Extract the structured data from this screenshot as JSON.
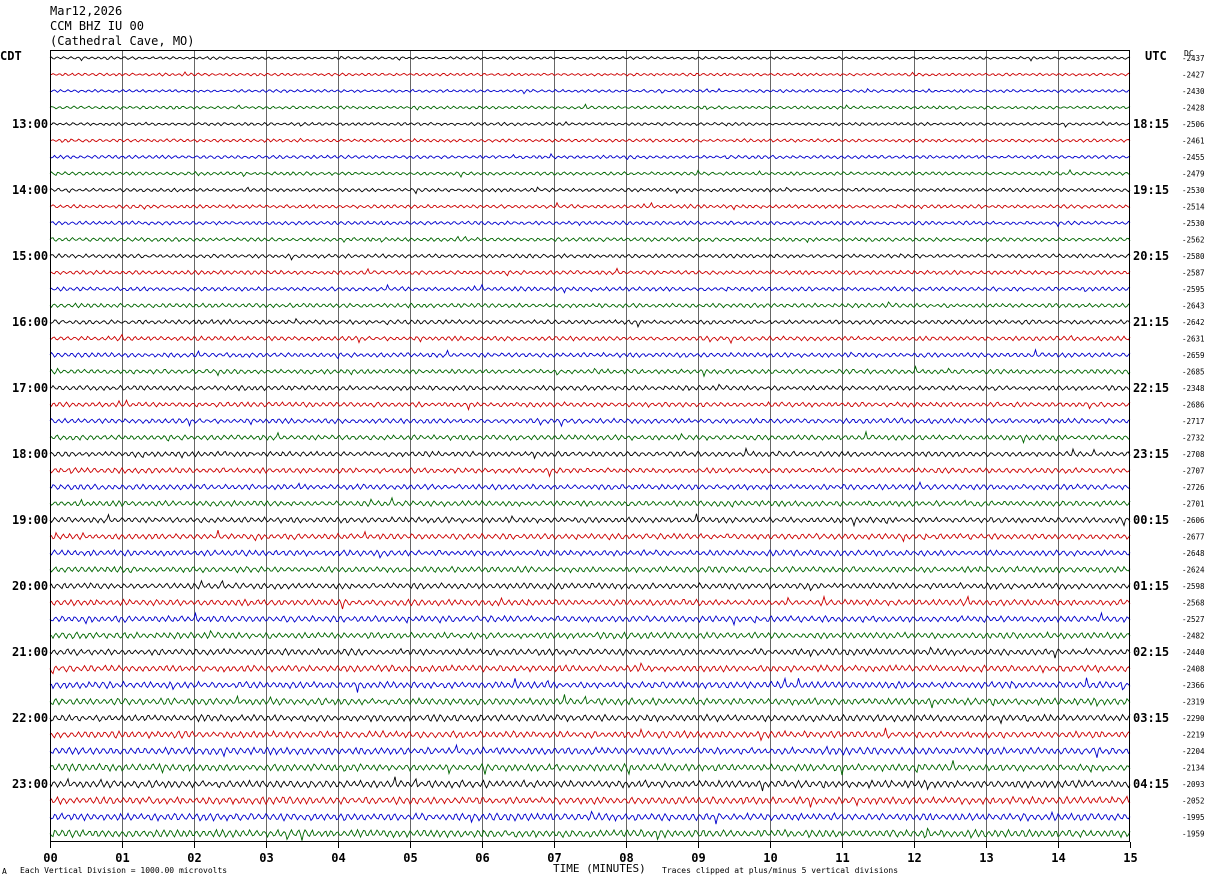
{
  "header": {
    "date": "Mar12,2026",
    "station": "CCM BHZ IU 00",
    "location": "(Cathedral Cave, MO)"
  },
  "left_tz": "CDT",
  "right_tz": "UTC",
  "dc_label": "DC",
  "footer": {
    "scale_note": "Each Vertical Division = 1000.00 microvolts",
    "xlabel": "TIME (MINUTES)",
    "clip_note": "Traces clipped at plus/minus 5 vertical divisions",
    "corner_mark": "A"
  },
  "colors": {
    "black": "#000000",
    "red": "#cc0000",
    "blue": "#0000cc",
    "green": "#006600",
    "grid": "#000000"
  },
  "chart_data": {
    "type": "line",
    "title": "CCM BHZ IU 00",
    "xlabel": "TIME (MINUTES)",
    "xlim": [
      0,
      15
    ],
    "x_ticks": [
      "00",
      "01",
      "02",
      "03",
      "04",
      "05",
      "06",
      "07",
      "08",
      "09",
      "10",
      "11",
      "12",
      "13",
      "14",
      "15"
    ],
    "trace_colors_cycle": [
      "black",
      "red",
      "blue",
      "green"
    ],
    "left_time_labels": [
      "13:00",
      "14:00",
      "15:00",
      "16:00",
      "17:00",
      "18:00",
      "19:00",
      "20:00",
      "21:00",
      "22:00",
      "23:00"
    ],
    "right_time_labels": [
      "18:15",
      "19:15",
      "20:15",
      "21:15",
      "22:15",
      "23:15",
      "00:15",
      "01:15",
      "02:15",
      "03:15",
      "04:15"
    ],
    "dc_values": [
      "-2437",
      "-2427",
      "-2430",
      "-2428",
      "-2506",
      "-2461",
      "-2455",
      "-2479",
      "-2530",
      "-2514",
      "-2530",
      "-2562",
      "-2580",
      "-2587",
      "-2595",
      "-2643",
      "-2642",
      "-2631",
      "-2659",
      "-2685",
      "-2348",
      "-2686",
      "-2717",
      "-2732",
      "-2708",
      "-2707",
      "-2726",
      "-2701",
      "-2606",
      "-2677",
      "-2648",
      "-2624",
      "-2598",
      "-2568",
      "-2527",
      "-2482",
      "-2440",
      "-2408",
      "-2366",
      "-2319",
      "-2290",
      "-2219",
      "-2204",
      "-2134",
      "-2093",
      "-2052",
      "-1995",
      "-1959"
    ]
  }
}
